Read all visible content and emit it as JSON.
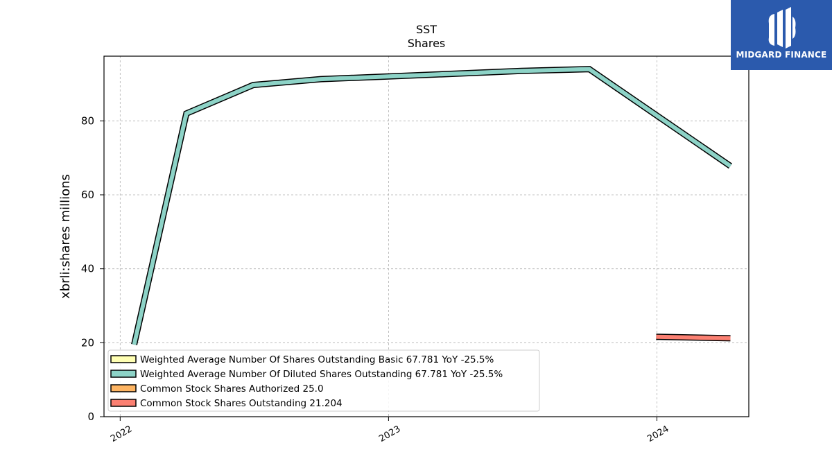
{
  "chart_data": {
    "type": "line",
    "title": "SST",
    "subtitle": "Shares",
    "ylabel": "xbrli:shares millions",
    "xlabel": "",
    "ylim": [
      0,
      97.5
    ],
    "yticks": [
      0,
      20,
      40,
      60,
      80
    ],
    "xrange": [
      "2021-12-10",
      "2024-05-05"
    ],
    "xticks": [
      "2022",
      "2023",
      "2024"
    ],
    "grid": true,
    "legend_position": "lower-left",
    "series": [
      {
        "name": "Weighted Average Number Of Shares Outstanding Basic",
        "legend_label": "Weighted Average Number Of Shares Outstanding Basic  67.781 YoY -25.5%",
        "color": "#ffffb3",
        "points": []
      },
      {
        "name": "Weighted Average Number Of Diluted Shares Outstanding",
        "legend_label": "Weighted Average Number Of Diluted Shares Outstanding  67.781 YoY -25.5%",
        "color": "#8dd3c7",
        "points": [
          {
            "x": "2022-01-20",
            "y": 19.5
          },
          {
            "x": "2022-04-01",
            "y": 82.0
          },
          {
            "x": "2022-07-01",
            "y": 89.7
          },
          {
            "x": "2022-10-01",
            "y": 91.3
          },
          {
            "x": "2023-01-01",
            "y": 92.0
          },
          {
            "x": "2023-07-01",
            "y": 93.5
          },
          {
            "x": "2023-10-01",
            "y": 94.0
          },
          {
            "x": "2024-04-10",
            "y": 67.781
          }
        ]
      },
      {
        "name": "Common Stock Shares Authorized",
        "legend_label": "Common Stock Shares Authorized  25.0",
        "color": "#fdb462",
        "points": []
      },
      {
        "name": "Common Stock Shares Outstanding",
        "legend_label": "Common Stock Shares Outstanding  21.204",
        "color": "#fb8072",
        "points": [
          {
            "x": "2023-12-31",
            "y": 21.6
          },
          {
            "x": "2024-04-10",
            "y": 21.204
          }
        ]
      }
    ]
  },
  "logo": {
    "text": "MIDGARD FINANCE"
  }
}
